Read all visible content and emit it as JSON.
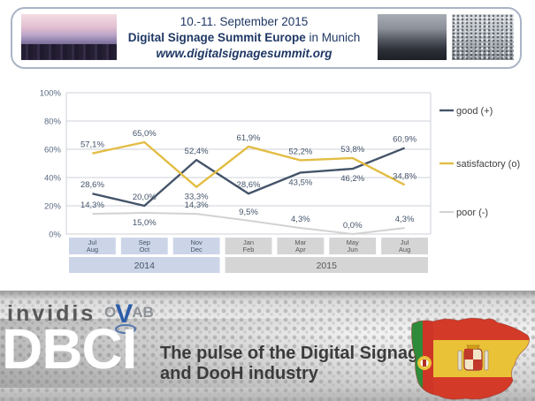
{
  "header": {
    "date_line": "10.-11. September 2015",
    "title_bold": "Digital Signage Summit Europe",
    "title_rest": " in Munich",
    "url": "www.digitalsignagesummit.org"
  },
  "chart_data": {
    "type": "line",
    "categories": [
      [
        "Jul",
        "Aug"
      ],
      [
        "Sep",
        "Oct"
      ],
      [
        "Nov",
        "Dec"
      ],
      [
        "Jan",
        "Feb"
      ],
      [
        "Mar",
        "Apr"
      ],
      [
        "May",
        "Jun"
      ],
      [
        "Jul",
        "Aug"
      ]
    ],
    "year_groups": [
      {
        "label": "2014",
        "span": 3,
        "fill": "#CCD5E8",
        "text_color": "#44546A"
      },
      {
        "label": "2015",
        "span": 4,
        "fill": "#D5D5D5",
        "text_color": "#595959"
      }
    ],
    "series": [
      {
        "name": "good (+)",
        "color": "#44546A",
        "width": 2.4,
        "values": [
          28.6,
          20.0,
          52.4,
          28.6,
          43.5,
          46.2,
          60.9
        ],
        "labels": [
          "28,6%",
          "20,0%",
          "52,4%",
          "28,6%",
          "43,5%",
          "46,2%",
          "60,9%"
        ],
        "label_positions": [
          "above",
          "above",
          "above",
          "above",
          "below",
          "below",
          "above"
        ]
      },
      {
        "name": "satisfactory (o)",
        "color": "#E3BD44",
        "width": 2.4,
        "values": [
          57.1,
          65.0,
          33.3,
          61.9,
          52.2,
          53.8,
          34.8
        ],
        "labels": [
          "57,1%",
          "65,0%",
          "33,3%",
          "61,9%",
          "52,2%",
          "53,8%",
          "34,8%"
        ],
        "label_positions": [
          "above",
          "above",
          "below",
          "above",
          "above",
          "above",
          "above"
        ]
      },
      {
        "name": "poor (-)",
        "color": "#D2D2D2",
        "width": 2,
        "values": [
          14.3,
          15.0,
          14.3,
          9.5,
          4.3,
          0.0,
          4.3
        ],
        "labels": [
          "14,3%",
          "15,0%",
          "14,3%",
          "9,5%",
          "4,3%",
          "0,0%",
          "4,3%"
        ],
        "label_positions": [
          "above",
          "below",
          "above",
          "above",
          "above",
          "above",
          "above"
        ]
      }
    ],
    "y_ticks": [
      "0%",
      "20%",
      "40%",
      "60%",
      "80%",
      "100%"
    ],
    "ylim": [
      0,
      100
    ],
    "grid": true,
    "legend_position": "right",
    "label_color": "#44546A",
    "axis_text_color": "#5a6b84",
    "grid_color": "#cdd2da"
  },
  "banner": {
    "invidis": "invidis",
    "ovab_o": "O",
    "ovab_v": "V",
    "ovab_ab": "AB",
    "dbci": "DBCI",
    "tagline1": "The pulse of the Digital Signage",
    "tagline2": "and DooH industry"
  }
}
